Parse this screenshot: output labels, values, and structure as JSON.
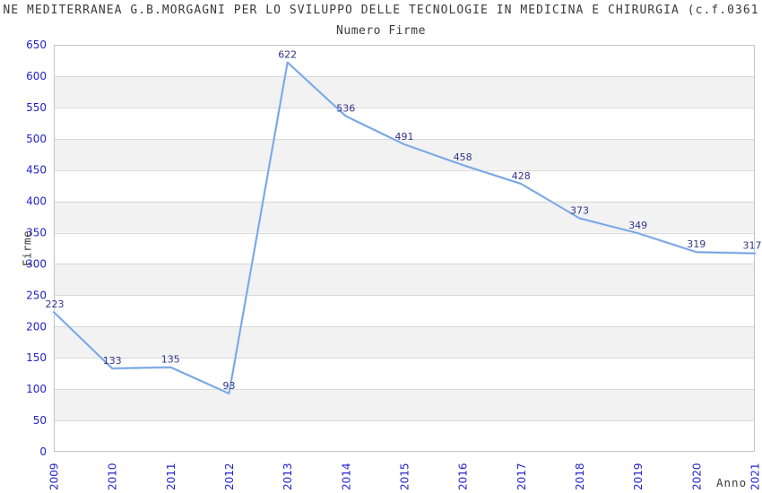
{
  "chart_data": {
    "type": "line",
    "title": "NE MEDITERRANEA G.B.MORGAGNI PER LO SVILUPPO DELLE TECNOLOGIE IN MEDICINA E CHIRURGIA (c.f.0361",
    "subtitle": "Numero Firme",
    "xlabel": "Anno",
    "ylabel": "Firme",
    "categories": [
      "2009",
      "2010",
      "2011",
      "2012",
      "2013",
      "2014",
      "2015",
      "2016",
      "2017",
      "2018",
      "2019",
      "2020",
      "2021"
    ],
    "values": [
      223,
      133,
      135,
      93,
      622,
      536,
      491,
      458,
      428,
      373,
      349,
      319,
      317
    ],
    "data_labels": [
      "223",
      "133",
      "135",
      "93",
      "622",
      "536",
      "491",
      "458",
      "428",
      "373",
      "349",
      "319",
      "317"
    ],
    "ylim": [
      0,
      650
    ],
    "ytick_step": 50,
    "yticks": [
      0,
      50,
      100,
      150,
      200,
      250,
      300,
      350,
      400,
      450,
      500,
      550,
      600,
      650
    ],
    "grid": "horizontal-only",
    "legend_position": "none",
    "band_fill_alternating": true,
    "colors": {
      "line": "#6f9fe0",
      "line_halo": "#cbdef5",
      "data_label": "#333388",
      "tick_label": "#2222cc",
      "band_alt": "#f2f2f2",
      "band_main": "#ffffff",
      "gridline": "#d9d9d9",
      "plot_border": "#c4c4c4",
      "heading_text": "#3a3a3a"
    }
  }
}
